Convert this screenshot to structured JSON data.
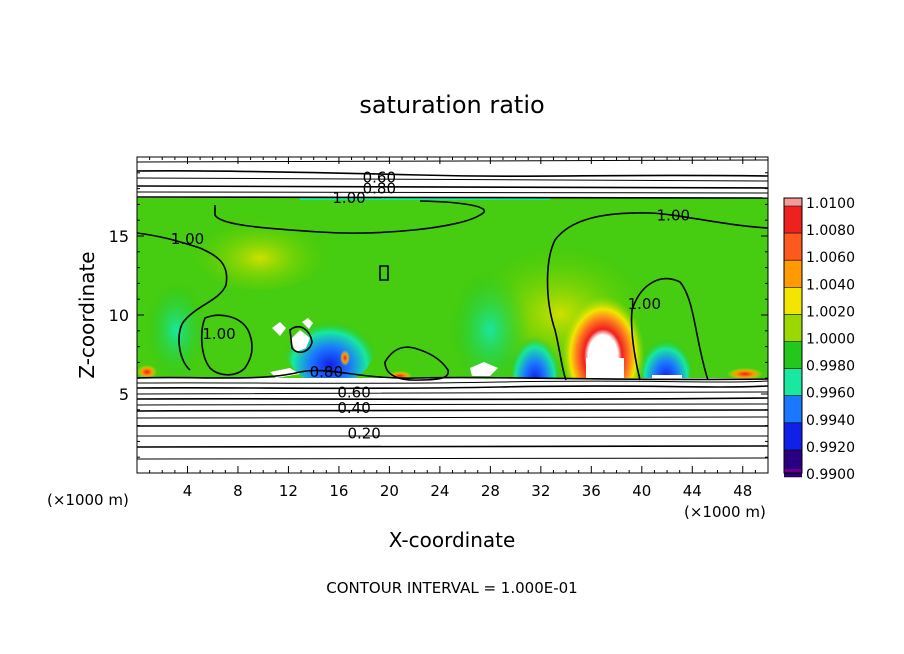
{
  "chart_data": {
    "type": "heatmap",
    "title": "saturation ratio",
    "xlabel": "X-coordinate",
    "ylabel": "Z-coordinate",
    "x_unit_label": "(×1000 m)",
    "x_unit_label_right": "(×1000 m)",
    "xlim": [
      0,
      50
    ],
    "ylim": [
      0,
      20
    ],
    "x_ticks": [
      4,
      8,
      12,
      16,
      20,
      24,
      28,
      32,
      36,
      40,
      44,
      48
    ],
    "x_tick_labels": [
      "4",
      "8",
      "12",
      "16",
      "20",
      "24",
      "28",
      "32",
      "36",
      "40",
      "44",
      "48"
    ],
    "y_ticks": [
      5,
      10,
      15
    ],
    "y_tick_labels": [
      "5",
      "10",
      "15"
    ],
    "colorbar": {
      "levels": [
        1.01,
        1.008,
        1.006,
        1.004,
        1.002,
        1.0,
        0.998,
        0.996,
        0.994,
        0.992,
        0.99
      ],
      "labels": [
        "1.0100",
        "1.0080",
        "1.0060",
        "1.0040",
        "1.0020",
        "1.0000",
        "0.9980",
        "0.9960",
        "0.9940",
        "0.9920",
        "0.9900"
      ],
      "colors": [
        "#f49a9a",
        "#ef2020",
        "#ff5a1e",
        "#ff9a00",
        "#f2e600",
        "#9ad800",
        "#24c81c",
        "#18e8a0",
        "#1a78ff",
        "#1020e8",
        "#2a0080",
        "#6a008a"
      ]
    },
    "contour_labels": [
      {
        "text": "0.60",
        "x": 19.2,
        "y": 18.7
      },
      {
        "text": "0.80",
        "x": 19.2,
        "y": 18.0
      },
      {
        "text": "1.00",
        "x": 16.8,
        "y": 17.4
      },
      {
        "text": "1.00",
        "x": 4.0,
        "y": 14.8
      },
      {
        "text": "1.00",
        "x": 42.5,
        "y": 16.3
      },
      {
        "text": "1.00",
        "x": 40.2,
        "y": 10.7
      },
      {
        "text": "1.00",
        "x": 6.5,
        "y": 8.8
      },
      {
        "text": "0.80",
        "x": 15.0,
        "y": 6.4
      },
      {
        "text": "0.60",
        "x": 17.2,
        "y": 5.1
      },
      {
        "text": "0.40",
        "x": 17.2,
        "y": 4.1
      },
      {
        "text": "0.20",
        "x": 18.0,
        "y": 2.5
      }
    ],
    "footer": "CONTOUR INTERVAL = 1.000E-01"
  }
}
